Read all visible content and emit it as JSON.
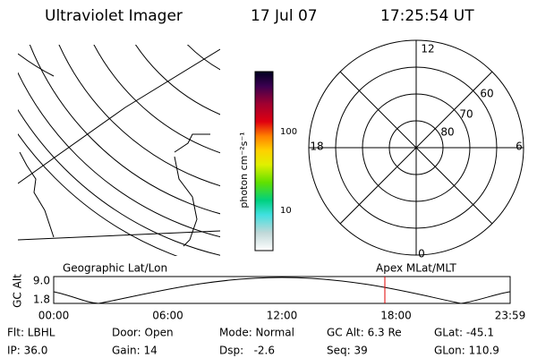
{
  "header": {
    "title": "Ultraviolet Imager",
    "date": "17 Jul 07",
    "time": "17:25:54 UT"
  },
  "colorbar": {
    "label": "photon cm⁻²s⁻¹",
    "ticks": [
      "100",
      "10"
    ]
  },
  "polar": {
    "mlt_labels": [
      "12",
      "6",
      "18",
      "0"
    ],
    "mlat_labels": [
      "60",
      "70",
      "80"
    ]
  },
  "panel_labels": {
    "left": "Geographic Lat/Lon",
    "right": "Apex MLat/MLT"
  },
  "altitude_plot": {
    "ylabel": "GC Alt",
    "yticks": [
      "9.0",
      "1.8"
    ],
    "xticks": [
      "00:00",
      "06:00",
      "12:00",
      "18:00",
      "23:59"
    ]
  },
  "info": {
    "rows": [
      [
        "Flt: LBHL",
        "Door: Open",
        "Mode: Normal",
        "GC Alt: 6.3 Re",
        "GLat: -45.1"
      ],
      [
        "IP: 36.0",
        "Gain: 14",
        "Dsp:   -2.6",
        "Seq: 39",
        "GLon: 110.9"
      ]
    ]
  }
}
